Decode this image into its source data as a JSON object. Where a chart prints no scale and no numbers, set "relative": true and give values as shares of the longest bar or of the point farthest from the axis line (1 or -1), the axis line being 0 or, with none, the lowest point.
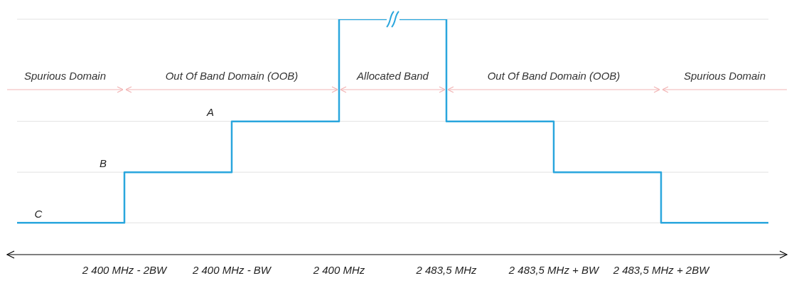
{
  "chart_data": {
    "type": "step",
    "relative": true,
    "categories": [
      null,
      "2 400 MHz - 2BW",
      "2 400 MHz - BW",
      "2 400 MHz",
      "2 483,5 MHz",
      "2 483,5 MHz + BW",
      "2 483,5 MHz + 2BW",
      null
    ],
    "series": [
      {
        "color": "#2aa6dd",
        "values": [
          0.135,
          0.35,
          0.566,
          1,
          0.566,
          0.35,
          0.135,
          0.135
        ]
      }
    ],
    "ref_lines": [
      {
        "axis": "y",
        "value": 0.566,
        "label": "A",
        "color": "#e2e2e2"
      },
      {
        "axis": "y",
        "value": 0.35,
        "label": "B",
        "color": "#e2e2e2"
      },
      {
        "axis": "y",
        "value": 0.135,
        "label": "C",
        "color": "#e2e2e2"
      },
      {
        "axis": "y",
        "value": 1,
        "label": null,
        "color": "#e2e2e2"
      }
    ],
    "annotations": [
      "Spurious Domain",
      "Out Of Band Domain (OOB)",
      "Allocated Band",
      "Out Of Band Domain (OOB)",
      "Spurious Domain"
    ]
  }
}
